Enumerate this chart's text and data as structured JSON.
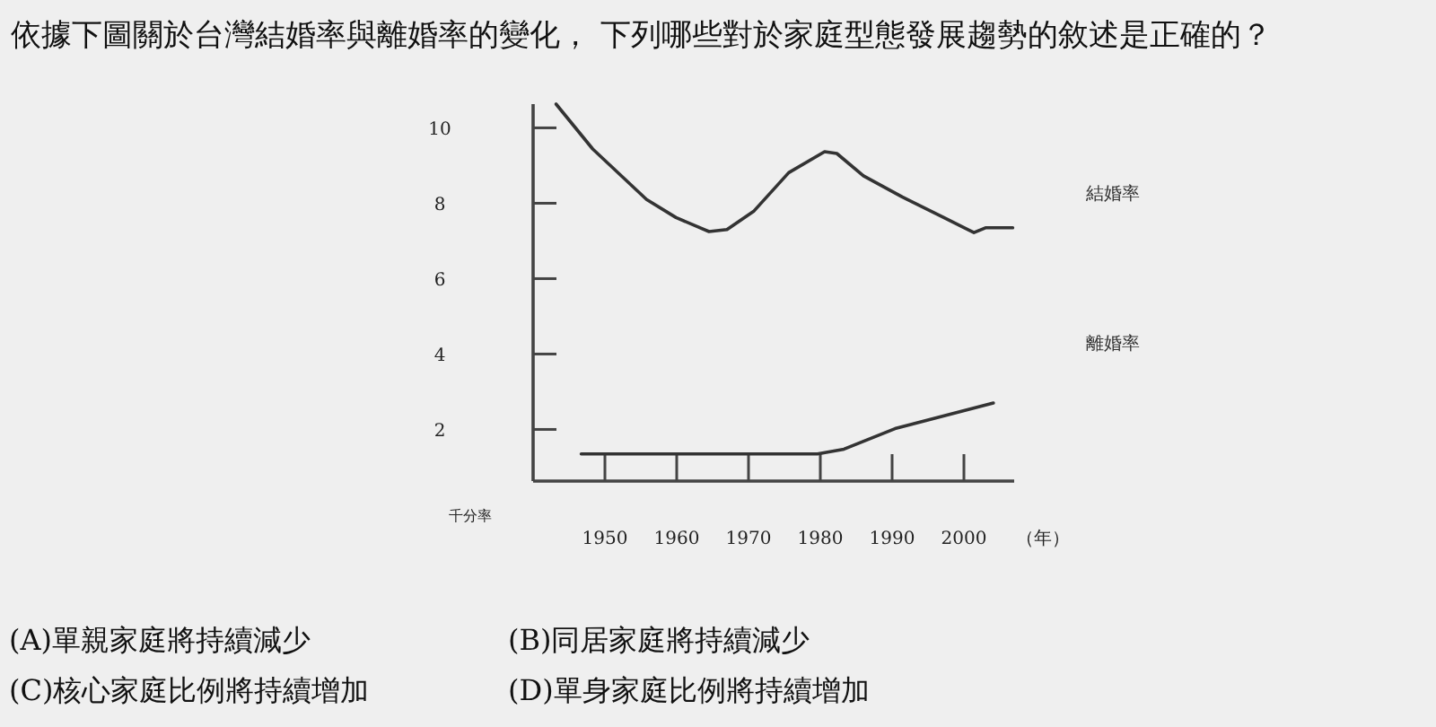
{
  "chart_data": {
    "type": "line",
    "title": "依據下圖關於台灣結婚率與離婚率的變化， 下列哪些對於家庭型態發展趨勢的敘述是正確的？",
    "xlabel": "（年）",
    "ylabel": "千分率",
    "xlim": [
      1940,
      2007
    ],
    "ylim": [
      0.63,
      10.63
    ],
    "xticks": [
      1950,
      1960,
      1970,
      1980,
      1990,
      2000
    ],
    "yticks": [
      2,
      4,
      6,
      8,
      10
    ],
    "series": [
      {
        "name": "結婚率",
        "color": "#333333",
        "x": [
          1943.2,
          1948.3,
          1955.8,
          1959.9,
          1964.5,
          1967,
          1970.7,
          1975.6,
          1980.6,
          1982.3,
          1986,
          1991.4,
          1997.2,
          2001.4,
          2003,
          2006.8
        ],
        "values": [
          10.63,
          9.44,
          8.1,
          7.62,
          7.25,
          7.3,
          7.78,
          8.81,
          9.37,
          9.32,
          8.73,
          8.17,
          7.62,
          7.22,
          7.35,
          7.35
        ]
      },
      {
        "name": "離婚率",
        "color": "#333333",
        "x": [
          1946.7,
          1979.6,
          1983.3,
          1990.4,
          2004.1
        ],
        "values": [
          1.35,
          1.35,
          1.48,
          2.02,
          2.7
        ]
      }
    ],
    "annotations": [
      "(A)單親家庭將持續減少",
      "(B)同居家庭將持續減少",
      "(C)核心家庭比例將持續增加",
      "(D)單身家庭比例將持續增加"
    ]
  }
}
